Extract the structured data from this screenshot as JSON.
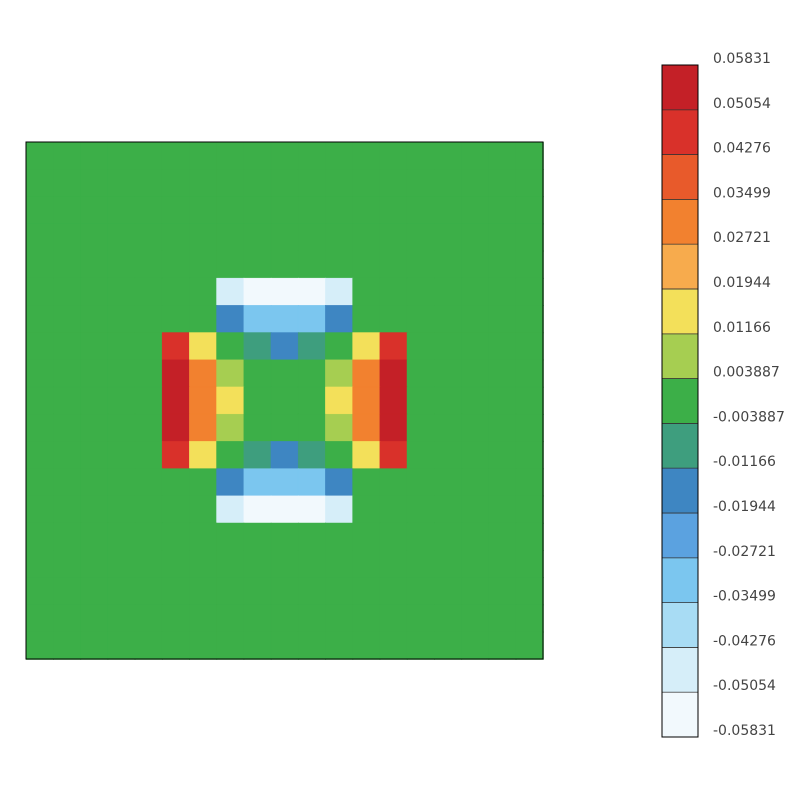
{
  "chart_data": {
    "type": "contour",
    "z": [
      [
        0,
        0,
        0,
        0,
        0,
        0,
        0,
        0,
        0,
        0,
        0,
        0,
        0,
        0,
        0,
        0,
        0,
        0,
        0
      ],
      [
        0,
        0,
        0,
        0,
        0,
        0,
        0,
        0,
        0,
        0,
        0,
        0,
        0,
        0,
        0,
        0,
        0,
        0,
        0
      ],
      [
        0,
        0,
        0,
        0,
        0,
        0,
        0,
        0,
        0,
        0,
        0,
        0,
        0,
        0,
        0,
        0,
        0,
        0,
        0
      ],
      [
        0,
        0,
        0,
        0,
        0,
        0,
        0,
        0,
        0,
        0,
        0,
        0,
        0,
        0,
        0,
        0,
        0,
        0,
        0
      ],
      [
        0,
        0,
        0,
        0,
        0,
        0,
        0,
        0,
        0,
        0,
        0,
        0,
        0,
        0,
        0,
        0,
        0,
        0,
        0
      ],
      [
        0,
        0,
        0,
        0,
        0,
        0,
        0,
        -0.0437,
        -0.0546,
        -0.0582,
        -0.0546,
        -0.0437,
        0,
        0,
        0,
        0,
        0,
        0,
        0
      ],
      [
        0,
        0,
        0,
        0,
        0,
        0,
        0,
        -0.0182,
        -0.0291,
        -0.0328,
        -0.0291,
        -0.0182,
        0,
        0,
        0,
        0,
        0,
        0,
        0
      ],
      [
        0,
        0,
        0,
        0,
        0,
        0.0437,
        0.0182,
        0,
        -0.0109,
        -0.0146,
        -0.0109,
        0,
        0.0182,
        0.0437,
        0,
        0,
        0,
        0,
        0
      ],
      [
        0,
        0,
        0,
        0,
        0,
        0.0546,
        0.0291,
        0.0109,
        0,
        -0.0036,
        0,
        0.0109,
        0.0291,
        0.0546,
        0,
        0,
        0,
        0,
        0
      ],
      [
        0,
        0,
        0,
        0,
        0,
        0.0582,
        0.0328,
        0.0146,
        0.0036,
        0,
        0.0036,
        0.0146,
        0.0328,
        0.0582,
        0,
        0,
        0,
        0,
        0
      ],
      [
        0,
        0,
        0,
        0,
        0,
        0.0546,
        0.0291,
        0.0109,
        0,
        -0.0036,
        0,
        0.0109,
        0.0291,
        0.0546,
        0,
        0,
        0,
        0,
        0
      ],
      [
        0,
        0,
        0,
        0,
        0,
        0.0437,
        0.0182,
        0,
        -0.0109,
        -0.0146,
        -0.0109,
        0,
        0.0182,
        0.0437,
        0,
        0,
        0,
        0,
        0
      ],
      [
        0,
        0,
        0,
        0,
        0,
        0,
        0,
        -0.0182,
        -0.0291,
        -0.0328,
        -0.0291,
        -0.0182,
        0,
        0,
        0,
        0,
        0,
        0,
        0
      ],
      [
        0,
        0,
        0,
        0,
        0,
        0,
        0,
        -0.0437,
        -0.0546,
        -0.0582,
        -0.0546,
        -0.0437,
        0,
        0,
        0,
        0,
        0,
        0,
        0
      ],
      [
        0,
        0,
        0,
        0,
        0,
        0,
        0,
        0,
        0,
        0,
        0,
        0,
        0,
        0,
        0,
        0,
        0,
        0,
        0
      ],
      [
        0,
        0,
        0,
        0,
        0,
        0,
        0,
        0,
        0,
        0,
        0,
        0,
        0,
        0,
        0,
        0,
        0,
        0,
        0
      ],
      [
        0,
        0,
        0,
        0,
        0,
        0,
        0,
        0,
        0,
        0,
        0,
        0,
        0,
        0,
        0,
        0,
        0,
        0,
        0
      ],
      [
        0,
        0,
        0,
        0,
        0,
        0,
        0,
        0,
        0,
        0,
        0,
        0,
        0,
        0,
        0,
        0,
        0,
        0,
        0
      ],
      [
        0,
        0,
        0,
        0,
        0,
        0,
        0,
        0,
        0,
        0,
        0,
        0,
        0,
        0,
        0,
        0,
        0,
        0,
        0
      ]
    ],
    "levels": [
      -0.05831,
      -0.05054,
      -0.04276,
      -0.03499,
      -0.02721,
      -0.01944,
      -0.01166,
      -0.003887,
      0.003887,
      0.01166,
      0.01944,
      0.02721,
      0.03499,
      0.04276,
      0.05054,
      0.05831
    ],
    "colors": [
      "#f2f9fd",
      "#d6eef9",
      "#a8dcf4",
      "#7bc6ef",
      "#5ba2e0",
      "#3e86c2",
      "#3e9e7e",
      "#3caf48",
      "#a6ce51",
      "#f3e05a",
      "#f7ab4d",
      "#f2812f",
      "#e85a2b",
      "#d9312a",
      "#c42027",
      "#a3171e"
    ]
  }
}
